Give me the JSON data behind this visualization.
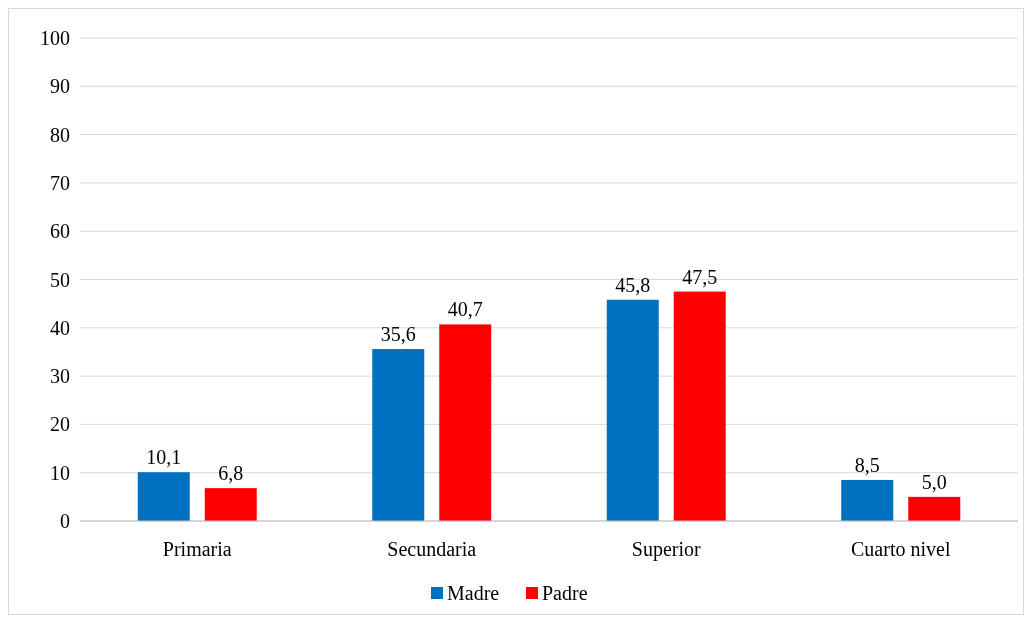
{
  "chart_data": {
    "type": "bar",
    "categories": [
      "Primaria",
      "Secundaria",
      "Superior",
      "Cuarto nivel"
    ],
    "series": [
      {
        "name": "Madre",
        "color": "#0070c0",
        "values": [
          10.1,
          35.6,
          45.8,
          8.5
        ],
        "value_labels": [
          "10,1",
          "35,6",
          "45,8",
          "8,5"
        ]
      },
      {
        "name": "Padre",
        "color": "#ff0000",
        "values": [
          6.8,
          40.7,
          47.5,
          5.0
        ],
        "value_labels": [
          "6,8",
          "40,7",
          "47,5",
          "5,0"
        ]
      }
    ],
    "ylim": [
      0,
      100
    ],
    "yticks": [
      0,
      10,
      20,
      30,
      40,
      50,
      60,
      70,
      80,
      90,
      100
    ],
    "grid": "y",
    "legend": "bottom"
  }
}
